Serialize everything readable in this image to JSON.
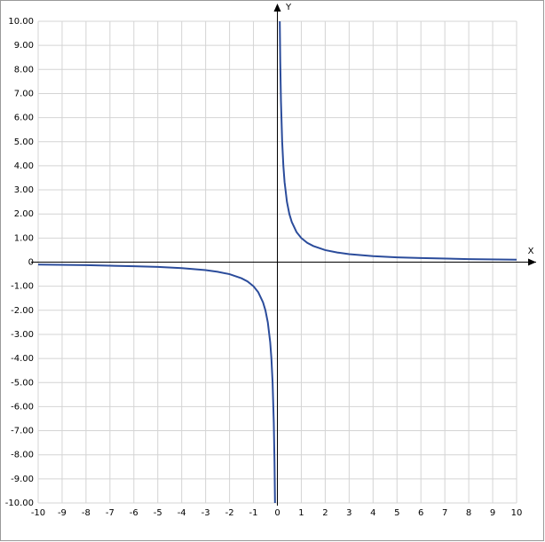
{
  "chart_data": {
    "type": "line",
    "x_axis_label": "X",
    "y_axis_label": "Y",
    "xlim": [
      -10,
      10
    ],
    "ylim": [
      -10,
      10
    ],
    "xticks": [
      -10,
      -9,
      -8,
      -7,
      -6,
      -5,
      -4,
      -3,
      -2,
      -1,
      0,
      1,
      2,
      3,
      4,
      5,
      6,
      7,
      8,
      9,
      10
    ],
    "yticks": [
      {
        "value": 10,
        "label": "10.00"
      },
      {
        "value": 9,
        "label": "9.00"
      },
      {
        "value": 8,
        "label": "8.00"
      },
      {
        "value": 7,
        "label": "7.00"
      },
      {
        "value": 6,
        "label": "6.00"
      },
      {
        "value": 5,
        "label": "5.00"
      },
      {
        "value": 4,
        "label": "4.00"
      },
      {
        "value": 3,
        "label": "3.00"
      },
      {
        "value": 2,
        "label": "2.00"
      },
      {
        "value": 1,
        "label": "1.00"
      },
      0,
      {
        "value": -1,
        "label": "-1.00"
      },
      {
        "value": -2,
        "label": "-2.00"
      },
      {
        "value": -3,
        "label": "-3.00"
      },
      {
        "value": -4,
        "label": "-4.00"
      },
      {
        "value": -5,
        "label": "-5.00"
      },
      {
        "value": -6,
        "label": "-6.00"
      },
      {
        "value": -7,
        "label": "-7.00"
      },
      {
        "value": -8,
        "label": "-8.00"
      },
      {
        "value": -9,
        "label": "-9.00"
      },
      {
        "value": -10,
        "label": "-10.00"
      }
    ],
    "grid": true,
    "series": [
      {
        "color": "#2b4c9b",
        "x": [
          -10,
          -8,
          -6,
          -5,
          -4,
          -3,
          -2.5,
          -2,
          -1.5,
          -1.25,
          -1,
          -0.8,
          -0.6,
          -0.5,
          -0.4,
          -0.3,
          -0.25,
          -0.2,
          -0.15,
          -0.12,
          -0.1,
          0,
          0.1,
          0.12,
          0.15,
          0.2,
          0.25,
          0.3,
          0.4,
          0.5,
          0.6,
          0.8,
          1,
          1.25,
          1.5,
          2,
          2.5,
          3,
          4,
          5,
          6,
          8,
          10
        ],
        "values": [
          -0.1,
          -0.125,
          -0.17,
          -0.2,
          -0.25,
          -0.33,
          -0.4,
          -0.5,
          -0.67,
          -0.8,
          -1,
          -1.25,
          -1.67,
          -2,
          -2.5,
          -3.33,
          -4,
          -5,
          -6.67,
          -8.33,
          -10,
          null,
          10,
          8.33,
          6.67,
          5,
          4,
          3.33,
          2.5,
          2,
          1.67,
          1.25,
          1,
          0.8,
          0.67,
          0.5,
          0.4,
          0.33,
          0.25,
          0.2,
          0.17,
          0.125,
          0.1
        ]
      }
    ]
  }
}
